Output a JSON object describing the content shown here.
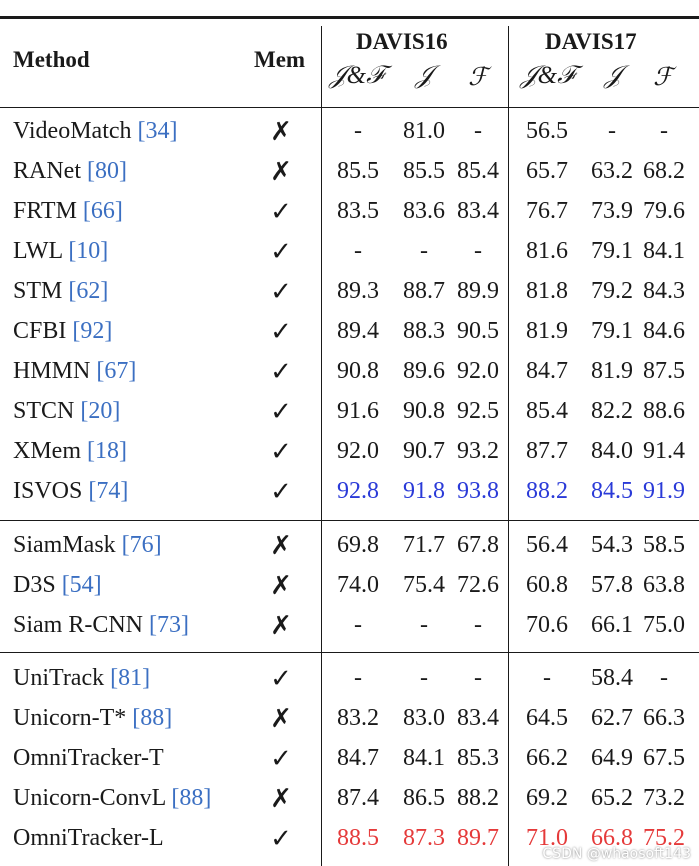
{
  "header": {
    "method": "Method",
    "mem": "Mem",
    "davis16": "DAVIS16",
    "davis17": "DAVIS17",
    "subcols": [
      "𝒥&ℱ",
      "𝒥",
      "ℱ"
    ]
  },
  "groups": [
    {
      "rows": [
        {
          "method": "VideoMatch",
          "ref": "[34]",
          "mem": false,
          "d16": [
            "-",
            "81.0",
            "-"
          ],
          "d17": [
            "56.5",
            "-",
            "-"
          ]
        },
        {
          "method": "RANet",
          "ref": "[80]",
          "mem": false,
          "d16": [
            "85.5",
            "85.5",
            "85.4"
          ],
          "d17": [
            "65.7",
            "63.2",
            "68.2"
          ]
        },
        {
          "method": "FRTM",
          "ref": "[66]",
          "mem": true,
          "d16": [
            "83.5",
            "83.6",
            "83.4"
          ],
          "d17": [
            "76.7",
            "73.9",
            "79.6"
          ]
        },
        {
          "method": "LWL",
          "ref": "[10]",
          "mem": true,
          "d16": [
            "-",
            "-",
            "-"
          ],
          "d17": [
            "81.6",
            "79.1",
            "84.1"
          ]
        },
        {
          "method": "STM",
          "ref": "[62]",
          "mem": true,
          "d16": [
            "89.3",
            "88.7",
            "89.9"
          ],
          "d17": [
            "81.8",
            "79.2",
            "84.3"
          ]
        },
        {
          "method": "CFBI",
          "ref": "[92]",
          "mem": true,
          "d16": [
            "89.4",
            "88.3",
            "90.5"
          ],
          "d17": [
            "81.9",
            "79.1",
            "84.6"
          ]
        },
        {
          "method": "HMMN",
          "ref": "[67]",
          "mem": true,
          "d16": [
            "90.8",
            "89.6",
            "92.0"
          ],
          "d17": [
            "84.7",
            "81.9",
            "87.5"
          ]
        },
        {
          "method": "STCN",
          "ref": "[20]",
          "mem": true,
          "d16": [
            "91.6",
            "90.8",
            "92.5"
          ],
          "d17": [
            "85.4",
            "82.2",
            "88.6"
          ]
        },
        {
          "method": "XMem",
          "ref": "[18]",
          "mem": true,
          "d16": [
            "92.0",
            "90.7",
            "93.2"
          ],
          "d17": [
            "87.7",
            "84.0",
            "91.4"
          ]
        },
        {
          "method": "ISVOS",
          "ref": "[74]",
          "mem": true,
          "d16": [
            "92.8",
            "91.8",
            "93.8"
          ],
          "d17": [
            "88.2",
            "84.5",
            "91.9"
          ],
          "highlight": "blue"
        }
      ]
    },
    {
      "rows": [
        {
          "method": "SiamMask",
          "ref": "[76]",
          "mem": false,
          "d16": [
            "69.8",
            "71.7",
            "67.8"
          ],
          "d17": [
            "56.4",
            "54.3",
            "58.5"
          ]
        },
        {
          "method": "D3S",
          "ref": "[54]",
          "mem": false,
          "d16": [
            "74.0",
            "75.4",
            "72.6"
          ],
          "d17": [
            "60.8",
            "57.8",
            "63.8"
          ]
        },
        {
          "method": "Siam R-CNN",
          "ref": "[73]",
          "mem": false,
          "d16": [
            "-",
            "-",
            "-"
          ],
          "d17": [
            "70.6",
            "66.1",
            "75.0"
          ]
        }
      ]
    },
    {
      "rows": [
        {
          "method": "UniTrack",
          "ref": "[81]",
          "mem": true,
          "d16": [
            "-",
            "-",
            "-"
          ],
          "d17": [
            "-",
            "58.4",
            "-"
          ]
        },
        {
          "method": "Unicorn-T*",
          "ref": "[88]",
          "mem": false,
          "d16": [
            "83.2",
            "83.0",
            "83.4"
          ],
          "d17": [
            "64.5",
            "62.7",
            "66.3"
          ]
        },
        {
          "method": "OmniTracker-T",
          "ref": "",
          "mem": true,
          "d16": [
            "84.7",
            "84.1",
            "85.3"
          ],
          "d17": [
            "66.2",
            "64.9",
            "67.5"
          ]
        },
        {
          "method": "Unicorn-ConvL",
          "ref": "[88]",
          "mem": false,
          "d16": [
            "87.4",
            "86.5",
            "88.2"
          ],
          "d17": [
            "69.2",
            "65.2",
            "73.2"
          ]
        },
        {
          "method": "OmniTracker-L",
          "ref": "",
          "mem": true,
          "d16": [
            "88.5",
            "87.3",
            "89.7"
          ],
          "d17": [
            "71.0",
            "66.8",
            "75.2"
          ],
          "highlight": "red"
        }
      ]
    }
  ],
  "watermark": "CSDN @whaosoft143",
  "colors": {
    "ref": "#3b6fc2",
    "blue": "#2a3ad8",
    "red": "#e53a3a"
  }
}
